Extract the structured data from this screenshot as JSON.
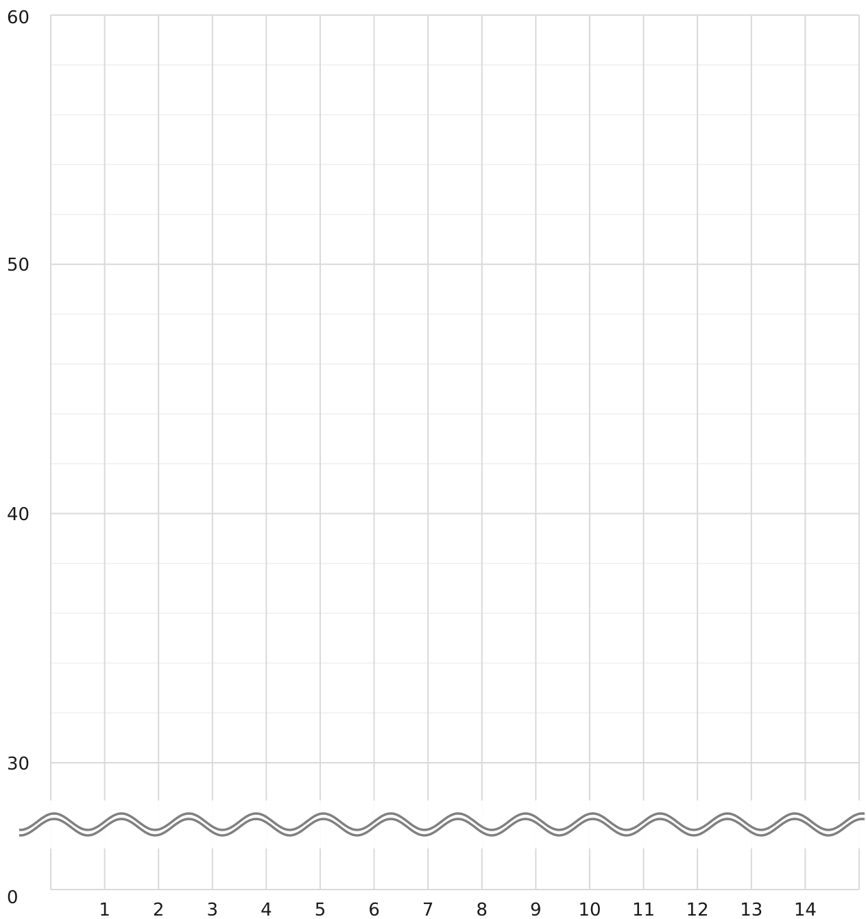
{
  "chart_data": {
    "type": "line",
    "title": "",
    "xlabel": "",
    "ylabel": "",
    "x_ticks": [
      "1",
      "2",
      "3",
      "4",
      "5",
      "6",
      "7",
      "8",
      "9",
      "10",
      "11",
      "12",
      "13",
      "14"
    ],
    "y_ticks": [
      "0",
      "30",
      "40",
      "50",
      "60"
    ],
    "ylim": [
      0,
      60
    ],
    "y_axis_break": [
      0,
      30
    ],
    "grid": true,
    "colors": {
      "major_grid": "#d9d9d9",
      "minor_grid": "#efefef",
      "axis_break": "#808080"
    }
  }
}
